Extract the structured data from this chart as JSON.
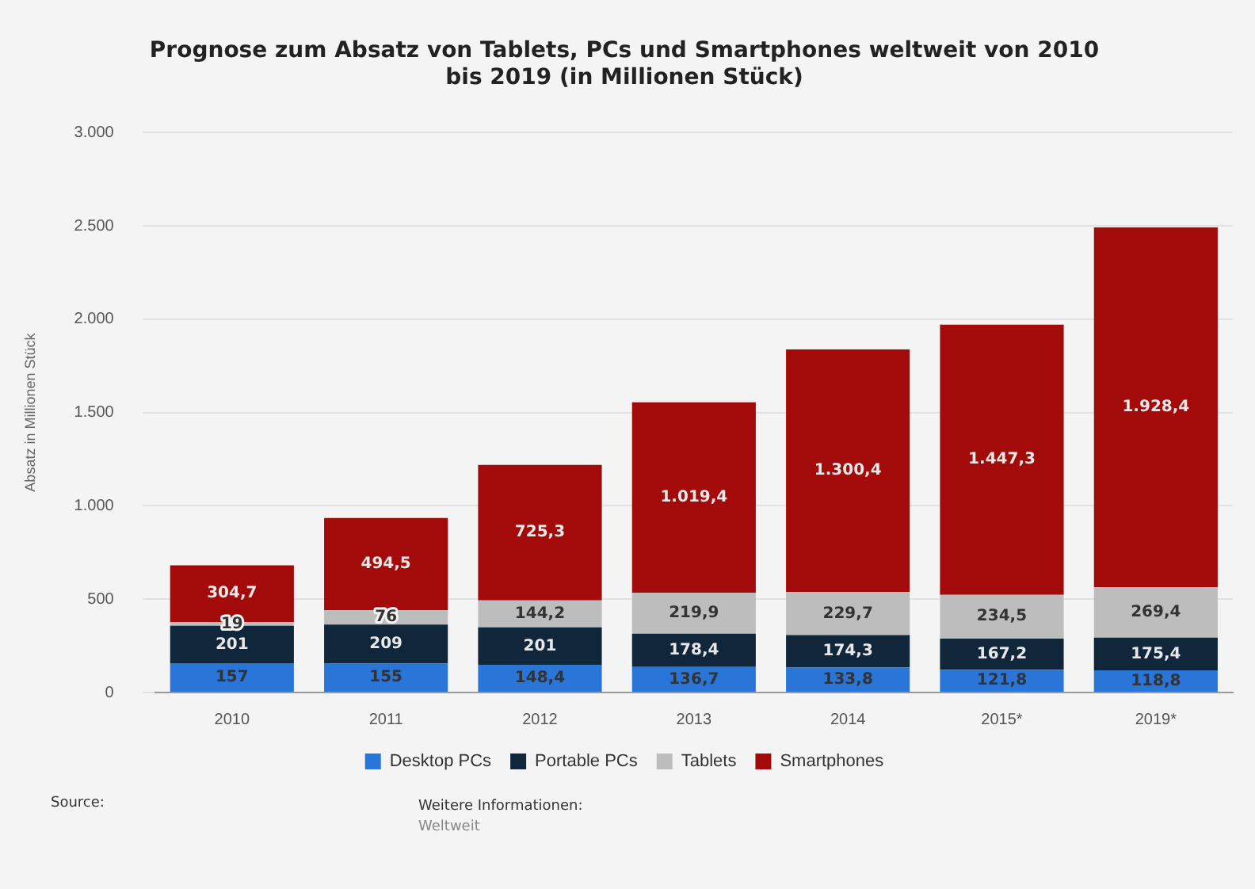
{
  "chart_data": {
    "type": "bar",
    "stacked": true,
    "title": "Prognose zum Absatz von Tablets, PCs und Smartphones weltweit von 2010 bis 2019 (in Millionen Stück)",
    "ylabel": "Absatz in Millionen Stück",
    "categories": [
      "2010",
      "2011",
      "2012",
      "2013",
      "2014",
      "2015*",
      "2019*"
    ],
    "series": [
      {
        "name": "Desktop PCs",
        "color": "#2a75d8",
        "values": [
          157,
          155,
          148.4,
          136.7,
          133.8,
          121.8,
          118.8
        ],
        "value_labels": [
          "157",
          "155",
          "148,4",
          "136,7",
          "133,8",
          "121,8",
          "118,8"
        ]
      },
      {
        "name": "Portable PCs",
        "color": "#10263b",
        "values": [
          201,
          209,
          201,
          178.4,
          174.3,
          167.2,
          175.4
        ],
        "value_labels": [
          "201",
          "209",
          "201",
          "178,4",
          "174,3",
          "167,2",
          "175,4"
        ]
      },
      {
        "name": "Tablets",
        "color": "#bdbdbd",
        "values": [
          19,
          76,
          144.2,
          219.9,
          229.7,
          234.5,
          269.4
        ],
        "value_labels": [
          "19",
          "76",
          "144,2",
          "219,9",
          "229,7",
          "234,5",
          "269,4"
        ]
      },
      {
        "name": "Smartphones",
        "color": "#a30b0b",
        "values": [
          304.7,
          494.5,
          725.3,
          1019.4,
          1300.4,
          1447.3,
          1928.4
        ],
        "value_labels": [
          "304,7",
          "494,5",
          "725,3",
          "1.019,4",
          "1.300,4",
          "1.447,3",
          "1.928,4"
        ]
      }
    ],
    "ylim": [
      0,
      3000
    ],
    "yticks": [
      0,
      500,
      {
        "value": 1000,
        "label": "1.000"
      },
      {
        "value": 1500,
        "label": "1.500"
      },
      {
        "value": 2000,
        "label": "2.000"
      },
      {
        "value": 2500,
        "label": "2.500"
      },
      {
        "value": 3000,
        "label": "3.000"
      }
    ],
    "grid": "y",
    "legend": "bottom",
    "annotations": [
      "Source:",
      "Weitere Informationen:",
      "Weltweit"
    ]
  }
}
